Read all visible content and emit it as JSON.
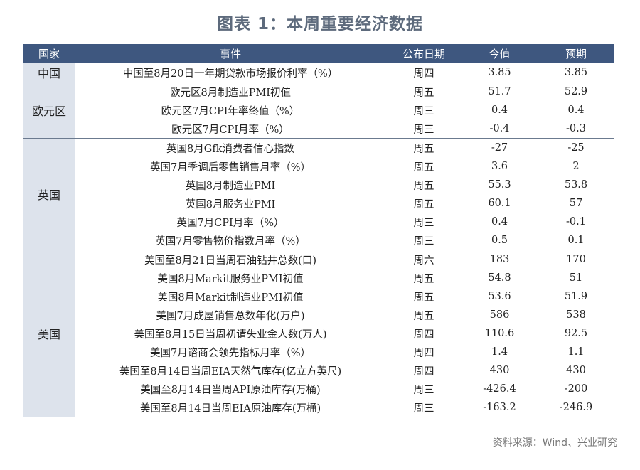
{
  "title": "图表 1：本周重要经济数据",
  "headers": [
    "国家",
    "事件",
    "公布日期",
    "今值",
    "预期"
  ],
  "groups": [
    {
      "country": "中国",
      "rows": [
        [
          "中国至8月20日一年期贷款市场报价利率（%）",
          "周四",
          "3.85",
          "3.85"
        ]
      ]
    },
    {
      "country": "欧元区",
      "rows": [
        [
          "欧元区8月制造业PMI初值",
          "周五",
          "51.7",
          "52.9"
        ],
        [
          "欧元区7月CPI年率终值（%）",
          "周三",
          "0.4",
          "0.4"
        ],
        [
          "欧元区7月CPI月率（%）",
          "周三",
          "-0.4",
          "-0.3"
        ]
      ]
    },
    {
      "country": "英国",
      "rows": [
        [
          "英国8月Gfk消费者信心指数",
          "周五",
          "-27",
          "-25"
        ],
        [
          "英国7月季调后零售销售月率（%）",
          "周五",
          "3.6",
          "2"
        ],
        [
          "英国8月制造业PMI",
          "周五",
          "55.3",
          "53.8"
        ],
        [
          "英国8月服务业PMI",
          "周五",
          "60.1",
          "57"
        ],
        [
          "英国7月CPI月率（%）",
          "周三",
          "0.4",
          "-0.1"
        ],
        [
          "英国7月零售物价指数月率（%）",
          "周三",
          "0.5",
          "0.1"
        ]
      ]
    },
    {
      "country": "美国",
      "rows": [
        [
          "美国至8月21日当周石油钻井总数(口)",
          "周六",
          "183",
          "170"
        ],
        [
          "美国8月Markit服务业PMI初值",
          "周五",
          "54.8",
          "51"
        ],
        [
          "美国8月Markit制造业PMI初值",
          "周五",
          "53.6",
          "51.9"
        ],
        [
          "美国7月成屋销售总数年化(万户)",
          "周五",
          "586",
          "538"
        ],
        [
          "美国至8月15日当周初请失业金人数(万人)",
          "周四",
          "110.6",
          "92.5"
        ],
        [
          "美国7月谘商会领先指标月率（%）",
          "周四",
          "1.4",
          "1.1"
        ],
        [
          "美国至8月14日当周EIA天然气库存(亿立方英尺)",
          "周四",
          "430",
          "430"
        ],
        [
          "美国至8月14日当周API原油库存(万桶)",
          "周三",
          "-426.4",
          "-200"
        ],
        [
          "美国至8月14日当周EIA原油库存(万桶)",
          "周三",
          "-163.2",
          "-246.9"
        ]
      ]
    }
  ],
  "source": "资料来源：Wind、兴业研究"
}
